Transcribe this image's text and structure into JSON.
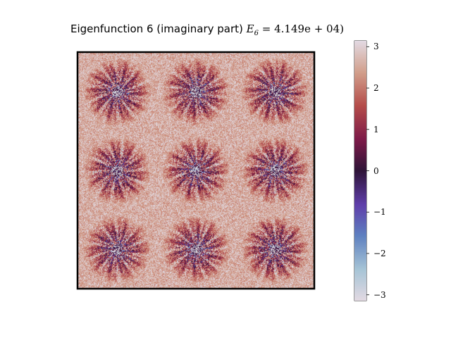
{
  "chart_data": {
    "type": "heatmap",
    "title": {
      "text": "Eigenfunction 6 (imaginary part) ",
      "math": "E",
      "subscript": "6",
      "equation": " = 4.149e + 04)"
    },
    "xlabel": "",
    "ylabel": "",
    "grid": false,
    "axis_ticks": false,
    "colormap": "twilight",
    "colorbar": {
      "range": [
        -3.14159,
        3.14159
      ],
      "ticks": [
        3,
        2,
        1,
        0,
        -1,
        -2,
        -3
      ],
      "tick_labels": [
        "3",
        "2",
        "1",
        "0",
        "−1",
        "−2",
        "−3"
      ],
      "location": "right"
    },
    "pattern": {
      "grid_rows": 3,
      "grid_cols": 3,
      "background_value": 2.6,
      "description_centers": "starburst"
    },
    "colors": {
      "frame": "#000000",
      "background": "#ffffff"
    }
  }
}
